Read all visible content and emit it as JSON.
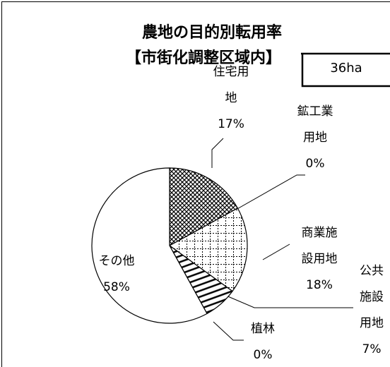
{
  "chart_data": {
    "type": "pie",
    "title": [
      "農地の目的別転用率",
      "【市街化調整区域内】"
    ],
    "annotation": "36ha",
    "categories": [
      "住宅用地",
      "鉱工業用地",
      "商業施設用地",
      "公共施設用地",
      "植林",
      "その他"
    ],
    "values": [
      17,
      0,
      18,
      7,
      0,
      58
    ],
    "value_labels": [
      "17%",
      "0%",
      "18%",
      "7%",
      "0%",
      "58%"
    ],
    "fills": [
      "crosshatch",
      "none",
      "grid",
      "hlines",
      "none",
      "none"
    ]
  }
}
